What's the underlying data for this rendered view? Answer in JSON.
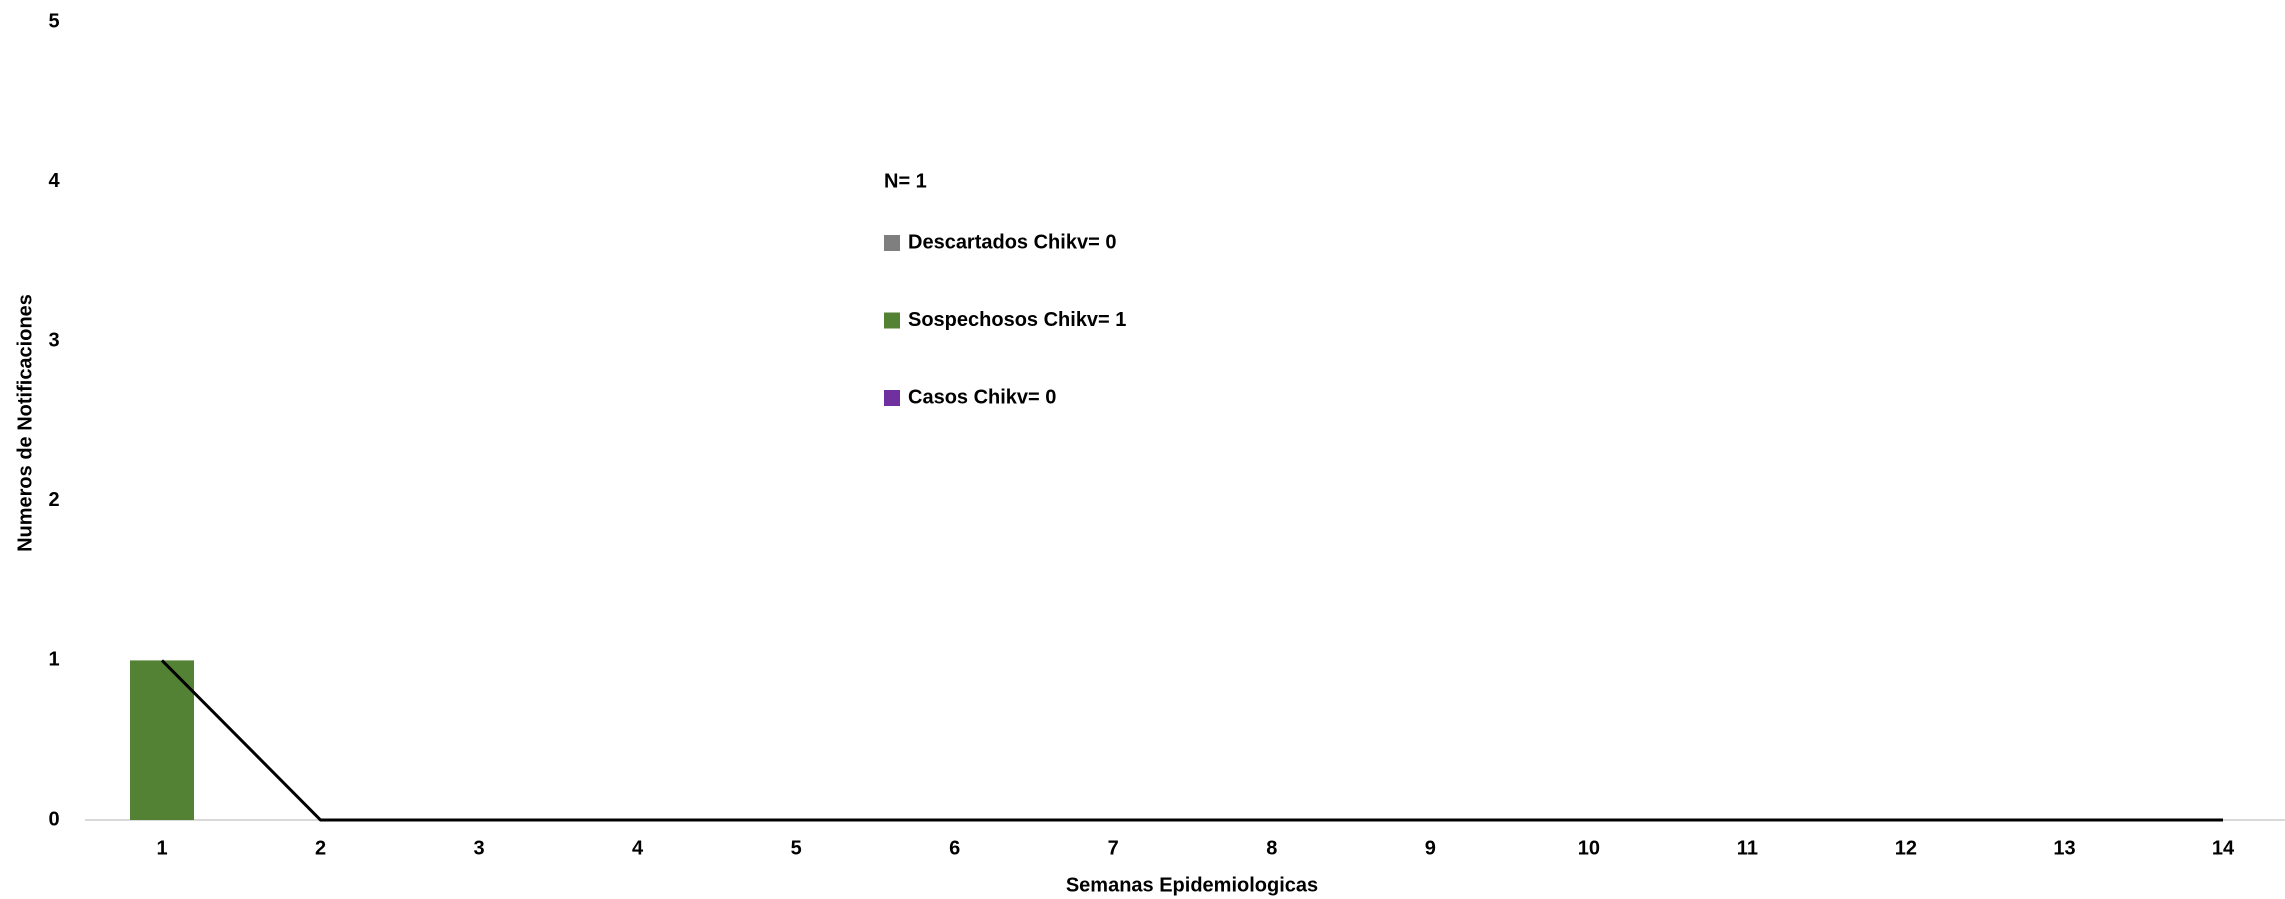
{
  "chart_data": {
    "type": "bar",
    "annotation": "N= 1",
    "x_label": "Semanas Epidemiologicas",
    "y_label": "Numeros de Notificaciones",
    "categories": [
      "1",
      "2",
      "3",
      "4",
      "5",
      "6",
      "7",
      "8",
      "9",
      "10",
      "11",
      "12",
      "13",
      "14"
    ],
    "series": [
      {
        "name": "Descartados Chikv= 0",
        "color": "#7f7f7f",
        "values": [
          0,
          0,
          0,
          0,
          0,
          0,
          0,
          0,
          0,
          0,
          0,
          0,
          0,
          0
        ]
      },
      {
        "name": "Sospechosos Chikv=  1",
        "color": "#548235",
        "values": [
          1,
          0,
          0,
          0,
          0,
          0,
          0,
          0,
          0,
          0,
          0,
          0,
          0,
          0
        ]
      },
      {
        "name": "Casos Chikv= 0",
        "color": "#7030a0",
        "values": [
          0,
          0,
          0,
          0,
          0,
          0,
          0,
          0,
          0,
          0,
          0,
          0,
          0,
          0
        ]
      },
      {
        "type": "line",
        "color": "#000000",
        "values": [
          1,
          0,
          0,
          0,
          0,
          0,
          0,
          0,
          0,
          0,
          0,
          0,
          0,
          0
        ]
      }
    ],
    "ylim": [
      0,
      5
    ],
    "yticks": [
      0,
      1,
      2,
      3,
      4,
      5
    ]
  }
}
